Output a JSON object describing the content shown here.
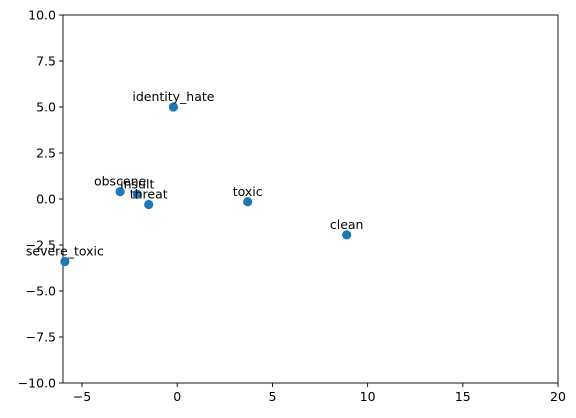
{
  "chart_data": {
    "type": "scatter",
    "title": "",
    "xlabel": "",
    "ylabel": "",
    "xlim": [
      -6,
      20
    ],
    "ylim": [
      -10,
      10
    ],
    "x_ticks": [
      -5,
      0,
      5,
      10,
      15,
      20
    ],
    "y_ticks": [
      -10.0,
      -7.5,
      -5.0,
      -2.5,
      0.0,
      2.5,
      5.0,
      7.5,
      10.0
    ],
    "x_tick_labels": [
      "−5",
      "0",
      "5",
      "10",
      "15",
      "20"
    ],
    "y_tick_labels": [
      "−10.0",
      "−7.5",
      "−5.0",
      "−2.5",
      "0.0",
      "2.5",
      "5.0",
      "7.5",
      "10.0"
    ],
    "grid": false,
    "marker_color": "#1f77b4",
    "points": [
      {
        "label": "identity_hate",
        "x": -0.2,
        "y": 5.0
      },
      {
        "label": "obscene",
        "x": -3.0,
        "y": 0.4
      },
      {
        "label": "insult",
        "x": -2.1,
        "y": 0.25
      },
      {
        "label": "threat",
        "x": -1.5,
        "y": -0.3
      },
      {
        "label": "toxic",
        "x": 3.7,
        "y": -0.15
      },
      {
        "label": "clean",
        "x": 8.9,
        "y": -1.95
      },
      {
        "label": "severe_toxic",
        "x": -5.9,
        "y": -3.4
      }
    ]
  }
}
